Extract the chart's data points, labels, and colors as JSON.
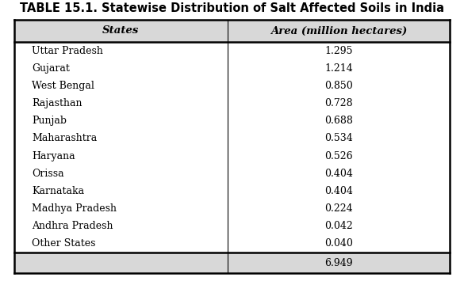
{
  "title": "TABLE 15.1. Statewise Distribution of Salt Affected Soils in India",
  "col_headers": [
    "States",
    "Area (million hectares)"
  ],
  "rows": [
    [
      "Uttar Pradesh",
      "1.295"
    ],
    [
      "Gujarat",
      "1.214"
    ],
    [
      "West Bengal",
      "0.850"
    ],
    [
      "Rajasthan",
      "0.728"
    ],
    [
      "Punjab",
      "0.688"
    ],
    [
      "Maharashtra",
      "0.534"
    ],
    [
      "Haryana",
      "0.526"
    ],
    [
      "Orissa",
      "0.404"
    ],
    [
      "Karnataka",
      "0.404"
    ],
    [
      "Madhya Pradesh",
      "0.224"
    ],
    [
      "Andhra Pradesh",
      "0.042"
    ],
    [
      "Other States",
      "0.040"
    ]
  ],
  "total_row": [
    "",
    "6.949"
  ],
  "bg_color": "#ffffff",
  "header_bg": "#d8d8d8",
  "total_bg": "#d8d8d8",
  "title_fontsize": 10.5,
  "header_fontsize": 9.5,
  "row_fontsize": 9,
  "border_color": "#000000",
  "text_color": "#000000"
}
